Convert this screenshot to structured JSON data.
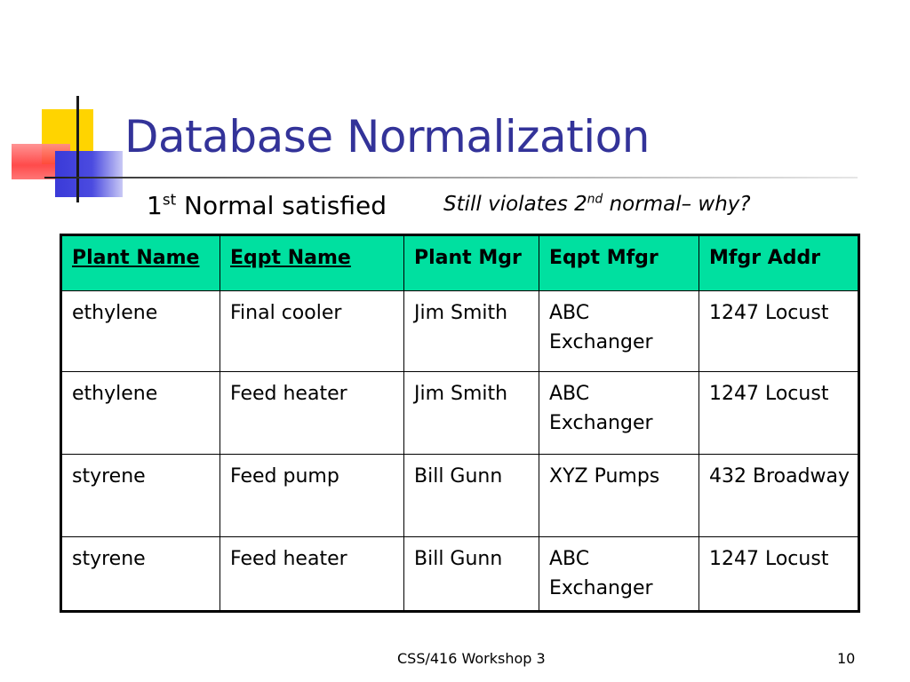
{
  "slide": {
    "title": "Database Normalization",
    "subtitle_left": {
      "base": "1",
      "sup": "st",
      "rest": " Normal satisfied"
    },
    "subtitle_right": {
      "base": "Still violates 2",
      "sup": "nd",
      "rest": " normal– why?"
    }
  },
  "table": {
    "headers": [
      "Plant Name",
      "Eqpt Name",
      "Plant Mgr",
      "Eqpt Mfgr",
      "Mfgr Addr"
    ],
    "key_columns": [
      0,
      1
    ],
    "rows": [
      [
        "ethylene",
        "Final cooler",
        "Jim Smith",
        "ABC Exchanger",
        "1247 Locust"
      ],
      [
        "ethylene",
        "Feed heater",
        "Jim Smith",
        "ABC Exchanger",
        "1247 Locust"
      ],
      [
        "styrene",
        "Feed pump",
        "Bill Gunn",
        "XYZ Pumps",
        "432 Broadway"
      ],
      [
        "styrene",
        "Feed heater",
        "Bill Gunn",
        "ABC Exchanger",
        "1247 Locust"
      ]
    ]
  },
  "footer": {
    "center": "CSS/416 Workshop 3",
    "page": "10"
  },
  "colors": {
    "title": "#333399",
    "header_fill": "#00e0a0",
    "deco_yellow": "#ffd400",
    "deco_red": "#ff3b3b",
    "deco_blue": "#3a3ad8"
  }
}
